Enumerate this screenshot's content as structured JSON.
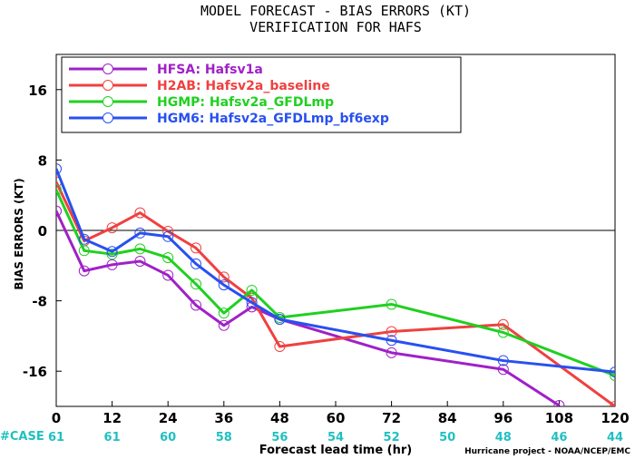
{
  "chart_data": {
    "type": "line",
    "title": "MODEL FORECAST - BIAS ERRORS (KT)",
    "subtitle": "VERIFICATION FOR HAFS",
    "xlabel": "Forecast lead time (hr)",
    "ylabel": "BIAS ERRORS (KT)",
    "x_ticks": [
      0,
      12,
      24,
      36,
      48,
      60,
      72,
      84,
      96,
      108,
      120
    ],
    "y_ticks": [
      16,
      8,
      0,
      -8,
      -16
    ],
    "xlim": [
      0,
      120
    ],
    "ylim": [
      -20,
      20
    ],
    "case_label": "#CASE",
    "case_counts": [
      {
        "x": 0,
        "n": "61"
      },
      {
        "x": 12,
        "n": "61"
      },
      {
        "x": 24,
        "n": "60"
      },
      {
        "x": 36,
        "n": "58"
      },
      {
        "x": 48,
        "n": "56"
      },
      {
        "x": 60,
        "n": "54"
      },
      {
        "x": 72,
        "n": "52"
      },
      {
        "x": 84,
        "n": "50"
      },
      {
        "x": 96,
        "n": "48"
      },
      {
        "x": 108,
        "n": "46"
      },
      {
        "x": 120,
        "n": "44"
      }
    ],
    "credit": "Hurricane project - NOAA/NCEP/EMC",
    "legend_position": "top-left",
    "zero_line": true,
    "series": [
      {
        "name": "HFSA: Hafsv1a",
        "color": "#a020c8",
        "x": [
          0,
          6,
          12,
          18,
          24,
          30,
          36,
          42,
          48,
          72,
          96,
          108
        ],
        "y": [
          2.2,
          -4.6,
          -3.9,
          -3.5,
          -5.1,
          -8.5,
          -10.8,
          -8.7,
          -10.1,
          -13.9,
          -15.8,
          -19.9
        ]
      },
      {
        "name": "H2AB: Hafsv2a_baseline",
        "color": "#f04040",
        "x": [
          0,
          6,
          12,
          18,
          24,
          30,
          36,
          42,
          48,
          72,
          96,
          120
        ],
        "y": [
          5.5,
          -1.2,
          0.3,
          2.0,
          -0.1,
          -2.0,
          -5.3,
          -7.7,
          -13.2,
          -11.5,
          -10.7,
          -20.0
        ]
      },
      {
        "name": "HGMP: Hafsv2a_GFDLmp",
        "color": "#20d020",
        "x": [
          0,
          6,
          12,
          18,
          24,
          30,
          36,
          42,
          48,
          72,
          96,
          120
        ],
        "y": [
          4.6,
          -2.3,
          -2.7,
          -2.1,
          -3.1,
          -6.1,
          -9.4,
          -6.8,
          -9.9,
          -8.4,
          -11.6,
          -16.5
        ]
      },
      {
        "name": "HGM6: Hafsv2a_GFDLmp_bf6exp",
        "color": "#2850f0",
        "x": [
          0,
          6,
          12,
          18,
          24,
          30,
          36,
          42,
          48,
          72,
          96,
          120
        ],
        "y": [
          7.0,
          -1.0,
          -2.4,
          -0.3,
          -0.7,
          -3.8,
          -6.2,
          -8.2,
          -10.1,
          -12.5,
          -14.8,
          -16.1
        ]
      }
    ]
  }
}
